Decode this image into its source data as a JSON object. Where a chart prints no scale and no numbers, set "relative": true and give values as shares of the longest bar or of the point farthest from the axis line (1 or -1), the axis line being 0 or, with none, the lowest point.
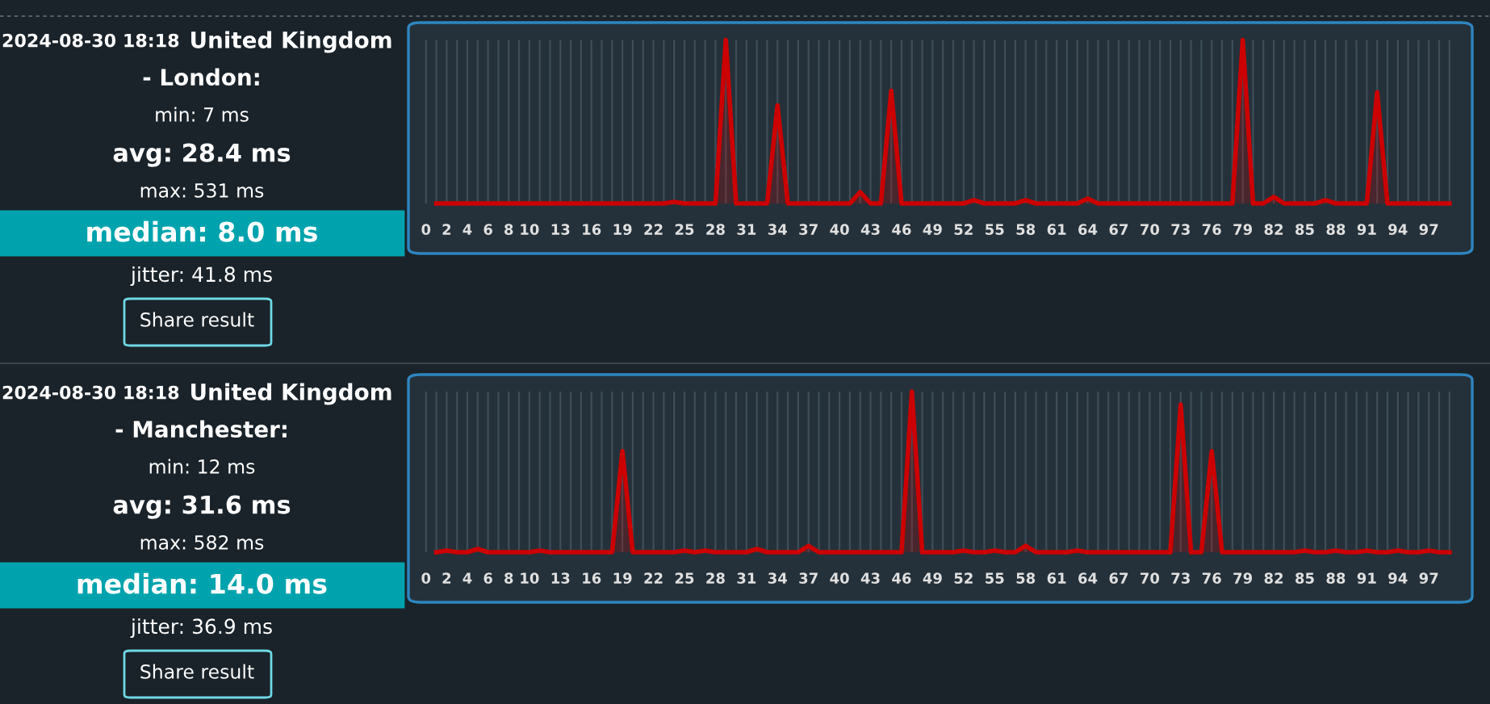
{
  "chart_data": [
    {
      "type": "other",
      "title": "United Kingdom - London:",
      "annotations": [
        "2024-08-30 18:18",
        "min: 7 ms",
        "avg: 28.4 ms",
        "max: 531 ms",
        "median: 8.0 ms",
        "jitter: 41.8 ms",
        "Share result"
      ]
    },
    {
      "type": "area",
      "relative": true,
      "grid": "x",
      "categories": [
        "0",
        null,
        "2",
        null,
        "4",
        null,
        "6",
        null,
        "8",
        null,
        "10",
        null,
        null,
        "13",
        null,
        null,
        "16",
        null,
        null,
        "19",
        null,
        null,
        "22",
        null,
        null,
        "25",
        null,
        null,
        "28",
        null,
        null,
        "31",
        null,
        null,
        "34",
        null,
        null,
        "37",
        null,
        null,
        "40",
        null,
        null,
        "43",
        null,
        null,
        "46",
        null,
        null,
        "49",
        null,
        null,
        "52",
        null,
        null,
        "55",
        null,
        null,
        "58",
        null,
        null,
        "61",
        null,
        null,
        "64",
        null,
        null,
        "67",
        null,
        null,
        "70",
        null,
        null,
        "73",
        null,
        null,
        "76",
        null,
        null,
        "79",
        null,
        null,
        "82",
        null,
        null,
        "85",
        null,
        null,
        "88",
        null,
        null,
        "91",
        null,
        null,
        "94",
        null,
        null,
        "97",
        null,
        null
      ],
      "series": [
        {
          "color": "#cc0000",
          "values": [
            null,
            0,
            0,
            0,
            0,
            0,
            0,
            0,
            0,
            0,
            0,
            0,
            0,
            0,
            0,
            0,
            0,
            0,
            0,
            0,
            0,
            0,
            0,
            0,
            0.01,
            0,
            0,
            0,
            0,
            1,
            0,
            0,
            0,
            0,
            0.6,
            0,
            0,
            0,
            0,
            0,
            0,
            0,
            0.07,
            0,
            0,
            0.69,
            0,
            0,
            0,
            0,
            0,
            0,
            0,
            0.02,
            0,
            0,
            0,
            0,
            0.02,
            0,
            0,
            0,
            0,
            0,
            0.03,
            0,
            0,
            0,
            0,
            0,
            0,
            0,
            0,
            0,
            0,
            0,
            0,
            0,
            0,
            1,
            0,
            0,
            0.04,
            0,
            0,
            0,
            0,
            0.02,
            0,
            0,
            0,
            0,
            0.68,
            0,
            0,
            0,
            0,
            0,
            0,
            0
          ]
        }
      ]
    },
    {
      "type": "other",
      "title": "United Kingdom - Manchester:",
      "annotations": [
        "2024-08-30 18:18",
        "min: 12 ms",
        "avg: 31.6 ms",
        "max: 582 ms",
        "median: 14.0 ms",
        "jitter: 36.9 ms",
        "Share result"
      ]
    },
    {
      "type": "area",
      "relative": true,
      "grid": "x",
      "categories": [
        "0",
        null,
        "2",
        null,
        "4",
        null,
        "6",
        null,
        "8",
        null,
        "10",
        null,
        null,
        "13",
        null,
        null,
        "16",
        null,
        null,
        "19",
        null,
        null,
        "22",
        null,
        null,
        "25",
        null,
        null,
        "28",
        null,
        null,
        "31",
        null,
        null,
        "34",
        null,
        null,
        "37",
        null,
        null,
        "40",
        null,
        null,
        "43",
        null,
        null,
        "46",
        null,
        null,
        "49",
        null,
        null,
        "52",
        null,
        null,
        "55",
        null,
        null,
        "58",
        null,
        null,
        "61",
        null,
        null,
        "64",
        null,
        null,
        "67",
        null,
        null,
        "70",
        null,
        null,
        "73",
        null,
        null,
        "76",
        null,
        null,
        "79",
        null,
        null,
        "82",
        null,
        null,
        "85",
        null,
        null,
        "88",
        null,
        null,
        "91",
        null,
        null,
        "94",
        null,
        null,
        "97",
        null,
        null
      ],
      "series": [
        {
          "color": "#cc0000",
          "values": [
            null,
            0,
            0.01,
            0,
            0,
            0.02,
            0,
            0,
            0,
            0,
            0,
            0.01,
            0,
            0,
            0,
            0,
            0,
            0,
            0,
            0.63,
            0,
            0,
            0,
            0,
            0,
            0.01,
            0,
            0.01,
            0,
            0,
            0,
            0,
            0.02,
            0,
            0,
            0,
            0,
            0.04,
            0,
            0,
            0,
            0,
            0,
            0,
            0,
            0,
            0,
            1,
            0,
            0,
            0,
            0,
            0.01,
            0,
            0,
            0.01,
            0,
            0,
            0.04,
            0,
            0,
            0,
            0,
            0.01,
            0,
            0,
            0,
            0,
            0,
            0,
            0,
            0,
            0,
            0.92,
            0,
            0,
            0.63,
            0,
            0,
            0,
            0,
            0,
            0,
            0,
            0,
            0.01,
            0,
            0,
            0.01,
            0,
            0,
            0.01,
            0,
            0,
            0.01,
            0,
            0,
            0.01,
            0,
            0
          ]
        }
      ]
    }
  ]
}
